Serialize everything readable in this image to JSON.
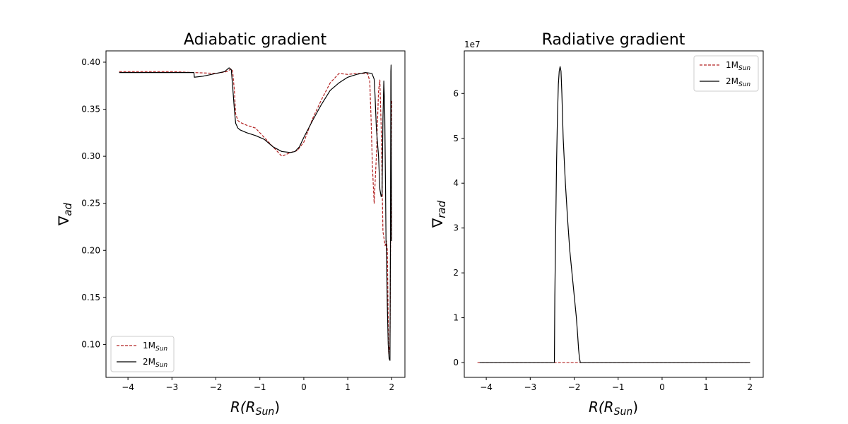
{
  "chart_data": [
    {
      "type": "line",
      "title": "Adiabatic gradient",
      "xlabel": {
        "main": "R(R",
        "sub": "Sun",
        "close": ")"
      },
      "ylabel": {
        "main": "∇",
        "sub": "ad"
      },
      "xlim": [
        -4.5,
        2.3
      ],
      "ylim": [
        0.065,
        0.412
      ],
      "x_ticks": [
        -4,
        -3,
        -2,
        -1,
        0,
        1,
        2
      ],
      "x_tick_labels": [
        "−4",
        "−3",
        "−2",
        "−1",
        "0",
        "1",
        "2"
      ],
      "y_ticks": [
        0.1,
        0.15,
        0.2,
        0.25,
        0.3,
        0.35,
        0.4
      ],
      "y_tick_labels": [
        "0.10",
        "0.15",
        "0.20",
        "0.25",
        "0.30",
        "0.35",
        "0.40"
      ],
      "multiplier": "",
      "legend_position": "lower-left",
      "grid": false,
      "series": [
        {
          "name": {
            "main": "1M",
            "sub": "Sun"
          },
          "color": "#b22222",
          "dash": "dashed",
          "x": [
            -4.2,
            -3.5,
            -3.0,
            -2.5,
            -2.0,
            -1.75,
            -1.65,
            -1.62,
            -1.58,
            -1.55,
            -1.5,
            -1.45,
            -1.3,
            -1.1,
            -0.9,
            -0.7,
            -0.5,
            -0.3,
            -0.15,
            0.0,
            0.2,
            0.4,
            0.6,
            0.8,
            1.0,
            1.2,
            1.35,
            1.45,
            1.5,
            1.53,
            1.56,
            1.6,
            1.65,
            1.7,
            1.73,
            1.76,
            1.8,
            1.85,
            1.88,
            1.9,
            1.93,
            1.96,
            1.98,
            2.0
          ],
          "y": [
            0.39,
            0.39,
            0.39,
            0.389,
            0.388,
            0.39,
            0.393,
            0.391,
            0.37,
            0.345,
            0.338,
            0.336,
            0.333,
            0.33,
            0.32,
            0.31,
            0.3,
            0.304,
            0.306,
            0.315,
            0.34,
            0.36,
            0.378,
            0.388,
            0.387,
            0.388,
            0.388,
            0.388,
            0.38,
            0.34,
            0.29,
            0.25,
            0.3,
            0.37,
            0.381,
            0.33,
            0.22,
            0.205,
            0.21,
            0.2,
            0.09,
            0.1,
            0.26,
            0.36
          ]
        },
        {
          "name": {
            "main": "2M",
            "sub": "Sun"
          },
          "color": "#000000",
          "dash": "solid",
          "x": [
            -4.2,
            -3.5,
            -3.0,
            -2.5,
            -2.49,
            -2.3,
            -2.0,
            -1.8,
            -1.7,
            -1.65,
            -1.62,
            -1.58,
            -1.55,
            -1.5,
            -1.45,
            -1.3,
            -1.1,
            -0.9,
            -0.7,
            -0.5,
            -0.3,
            -0.2,
            -0.1,
            0.0,
            0.2,
            0.4,
            0.6,
            0.8,
            1.0,
            1.2,
            1.4,
            1.55,
            1.6,
            1.62,
            1.65,
            1.7,
            1.73,
            1.76,
            1.78,
            1.8,
            1.82,
            1.84,
            1.86,
            1.87,
            1.88,
            1.9,
            1.92,
            1.94,
            1.96,
            1.97,
            1.98,
            1.985,
            1.99,
            2.0
          ],
          "y": [
            0.389,
            0.389,
            0.389,
            0.389,
            0.384,
            0.385,
            0.388,
            0.39,
            0.394,
            0.392,
            0.375,
            0.35,
            0.335,
            0.33,
            0.328,
            0.325,
            0.322,
            0.318,
            0.31,
            0.305,
            0.304,
            0.305,
            0.31,
            0.32,
            0.338,
            0.355,
            0.37,
            0.378,
            0.384,
            0.387,
            0.389,
            0.388,
            0.382,
            0.365,
            0.33,
            0.3,
            0.265,
            0.257,
            0.26,
            0.34,
            0.38,
            0.35,
            0.26,
            0.21,
            0.2,
            0.14,
            0.1,
            0.085,
            0.083,
            0.2,
            0.39,
            0.397,
            0.3,
            0.21
          ]
        }
      ]
    },
    {
      "type": "line",
      "title": "Radiative gradient",
      "xlabel": {
        "main": "R(R",
        "sub": "Sun",
        "close": ")"
      },
      "ylabel": {
        "main": "∇",
        "sub": "rad"
      },
      "xlim": [
        -4.5,
        2.3
      ],
      "ylim": [
        -3.3,
        69.5
      ],
      "x_ticks": [
        -4,
        -3,
        -2,
        -1,
        0,
        1,
        2
      ],
      "x_tick_labels": [
        "−4",
        "−3",
        "−2",
        "−1",
        "0",
        "1",
        "2"
      ],
      "y_ticks": [
        0,
        10,
        20,
        30,
        40,
        50,
        60
      ],
      "y_tick_labels": [
        "0",
        "1",
        "2",
        "3",
        "4",
        "5",
        "6"
      ],
      "multiplier": "1e7",
      "legend_position": "upper-right",
      "grid": false,
      "series": [
        {
          "name": {
            "main": "1M",
            "sub": "Sun"
          },
          "color": "#b22222",
          "dash": "dashed",
          "x": [
            -4.2,
            -3.0,
            -2.5,
            -2.0,
            -1.0,
            0.0,
            1.0,
            2.0
          ],
          "y": [
            0,
            0,
            0,
            0,
            0,
            0,
            0,
            0
          ]
        },
        {
          "name": {
            "main": "2M",
            "sub": "Sun"
          },
          "color": "#000000",
          "dash": "solid",
          "x": [
            -4.15,
            -3.0,
            -2.45,
            -2.44,
            -2.42,
            -2.4,
            -2.38,
            -2.36,
            -2.34,
            -2.32,
            -2.3,
            -2.28,
            -2.25,
            -2.2,
            -2.15,
            -2.1,
            -2.05,
            -2.0,
            -1.95,
            -1.92,
            -1.9,
            -1.88,
            -1.86,
            -1.0,
            0.0,
            1.0,
            2.0
          ],
          "y": [
            0,
            0,
            0,
            15,
            30,
            45,
            55,
            62,
            65,
            66,
            65,
            60,
            50,
            40,
            32,
            25,
            20,
            15,
            10,
            6,
            3,
            1,
            0,
            0,
            0,
            0,
            0
          ]
        }
      ]
    }
  ]
}
